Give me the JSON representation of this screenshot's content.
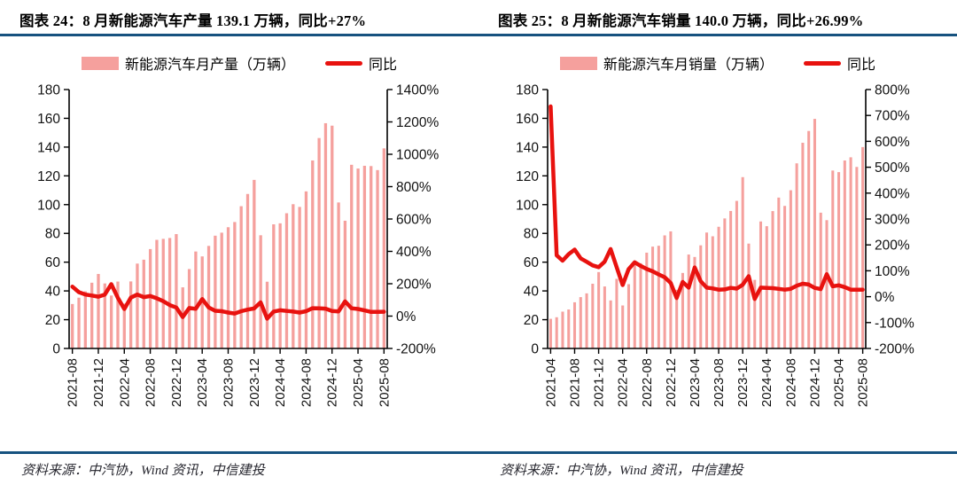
{
  "accent_rule_color": "#16527F",
  "bar_color": "#F5A09D",
  "line_color": "#E8120F",
  "charts": [
    {
      "title": "图表 24：8 月新能源汽车产量 139.1 万辆，同比+27%",
      "legend": {
        "bar_label": "新能源汽车月产量（万辆）",
        "line_label": "同比"
      },
      "source": "资料来源：中汽协，Wind 资讯，中信建投",
      "chart_data": {
        "type": "bar+line",
        "title": "8月新能源汽车产量 139.1 万辆，同比+27%",
        "categories": [
          "2021-08",
          "2021-09",
          "2021-10",
          "2021-11",
          "2021-12",
          "2022-01",
          "2022-02",
          "2022-03",
          "2022-04",
          "2022-05",
          "2022-06",
          "2022-07",
          "2022-08",
          "2022-09",
          "2022-10",
          "2022-11",
          "2022-12",
          "2023-01",
          "2023-02",
          "2023-03",
          "2023-04",
          "2023-05",
          "2023-06",
          "2023-07",
          "2023-08",
          "2023-09",
          "2023-10",
          "2023-11",
          "2023-12",
          "2024-01",
          "2024-02",
          "2024-03",
          "2024-04",
          "2024-05",
          "2024-06",
          "2024-07",
          "2024-08",
          "2024-09",
          "2024-10",
          "2024-11",
          "2024-12",
          "2025-01",
          "2025-02",
          "2025-03",
          "2025-04",
          "2025-05",
          "2025-06",
          "2025-07",
          "2025-08"
        ],
        "series": [
          {
            "name": "新能源汽车月产量（万辆）",
            "kind": "bar",
            "axis": "left",
            "values": [
              30.9,
              35.3,
              39.7,
              45.7,
              51.8,
              45.2,
              36.8,
              46.5,
              31.2,
              46.6,
              59.0,
              61.7,
              69.1,
              75.5,
              76.2,
              76.8,
              79.5,
              42.5,
              55.2,
              67.4,
              64.0,
              71.3,
              78.4,
              80.5,
              84.3,
              87.9,
              98.9,
              107.4,
              117.2,
              78.7,
              46.4,
              86.3,
              87.0,
              94.0,
              100.3,
              98.4,
              109.2,
              130.7,
              146.3,
              156.6,
              154.9,
              101.5,
              88.8,
              127.7,
              125.1,
              127.0,
              126.8,
              124.0,
              139.1
            ]
          },
          {
            "name": "同比",
            "kind": "line",
            "axis": "right",
            "values": [
              182,
              148,
              133,
              127,
              120,
              133,
              197,
              114,
              44,
              114,
              133,
              117,
              124,
              110,
              92,
              68,
              53,
              -6,
              50,
              45,
              105,
              53,
              33,
              30,
              22,
              16,
              30,
              40,
              47,
              85,
              -16,
              28,
              36,
              32,
              28,
              22,
              30,
              49,
              48,
              46,
              32,
              29,
              91,
              48,
              44,
              35,
              26,
              26,
              27
            ]
          }
        ],
        "left_axis": {
          "min": 0,
          "max": 180,
          "step": 20
        },
        "right_axis": {
          "min": -200,
          "max": 1400,
          "step": 200,
          "suffix": "%"
        },
        "x_label_every": 4,
        "grid": false,
        "legend_position": "top"
      }
    },
    {
      "title": "图表 25：8 月新能源汽车销量 140.0 万辆，同比+26.99%",
      "legend": {
        "bar_label": "新能源汽车月销量（万辆）",
        "line_label": "同比"
      },
      "source": "资料来源：中汽协，Wind 资讯，中信建投",
      "chart_data": {
        "type": "bar+line",
        "title": "8月新能源汽车销量 140.0 万辆，同比+26.99%",
        "categories": [
          "2021-04",
          "2021-05",
          "2021-06",
          "2021-07",
          "2021-08",
          "2021-09",
          "2021-10",
          "2021-11",
          "2021-12",
          "2022-01",
          "2022-02",
          "2022-03",
          "2022-04",
          "2022-05",
          "2022-06",
          "2022-07",
          "2022-08",
          "2022-09",
          "2022-10",
          "2022-11",
          "2022-12",
          "2023-01",
          "2023-02",
          "2023-03",
          "2023-04",
          "2023-05",
          "2023-06",
          "2023-07",
          "2023-08",
          "2023-09",
          "2023-10",
          "2023-11",
          "2023-12",
          "2024-01",
          "2024-02",
          "2024-03",
          "2024-04",
          "2024-05",
          "2024-06",
          "2024-07",
          "2024-08",
          "2024-09",
          "2024-10",
          "2024-11",
          "2024-12",
          "2025-01",
          "2025-02",
          "2025-03",
          "2025-04",
          "2025-05",
          "2025-06",
          "2025-07",
          "2025-08"
        ],
        "series": [
          {
            "name": "新能源汽车月销量（万辆）",
            "kind": "bar",
            "axis": "left",
            "values": [
              20.6,
              21.7,
              25.6,
              27.1,
              32.1,
              35.7,
              38.3,
              45.0,
              53.1,
              43.1,
              33.4,
              48.4,
              29.9,
              44.7,
              59.6,
              59.3,
              66.6,
              70.8,
              71.4,
              78.6,
              81.4,
              40.8,
              52.5,
              65.3,
              63.6,
              71.7,
              80.6,
              78.0,
              84.6,
              90.4,
              95.6,
              102.6,
              119.1,
              72.9,
              47.7,
              88.3,
              85.0,
              95.5,
              104.9,
              99.1,
              110.0,
              128.7,
              143.0,
              151.2,
              159.6,
              94.4,
              89.2,
              123.7,
              122.6,
              130.7,
              132.9,
              126.2,
              140.0
            ]
          },
          {
            "name": "同比",
            "kind": "line",
            "axis": "right",
            "values": [
              735,
              160,
              139,
              164,
              182,
              148,
              135,
              121,
              114,
              135,
              184,
              114,
              45,
              106,
              133,
              119,
              107,
              98,
              86,
              75,
              53,
              -5,
              57,
              35,
              113,
              60,
              35,
              32,
              27,
              28,
              34,
              31,
              46,
              79,
              -9,
              35,
              34,
              33,
              30,
              27,
              30,
              42,
              50,
              47,
              34,
              29,
              87,
              40,
              44,
              37,
              27,
              27,
              27
            ]
          }
        ],
        "left_axis": {
          "min": 0,
          "max": 180,
          "step": 20
        },
        "right_axis": {
          "min": -200,
          "max": 800,
          "step": 100,
          "suffix": "%"
        },
        "x_label_every": 4,
        "grid": false,
        "legend_position": "top"
      }
    }
  ]
}
